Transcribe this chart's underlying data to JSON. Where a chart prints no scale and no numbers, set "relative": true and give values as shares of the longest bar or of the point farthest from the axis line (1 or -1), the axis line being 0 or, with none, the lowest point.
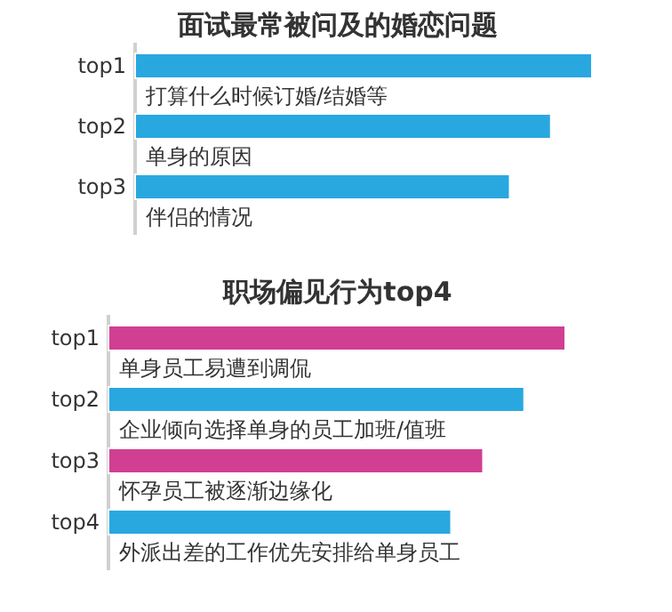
{
  "chart_data": [
    {
      "type": "bar",
      "orientation": "horizontal",
      "relative": true,
      "title": "面试最常被问及的婚恋问题",
      "categories": [
        "top1",
        "top2",
        "top3"
      ],
      "values": [
        1,
        0.91,
        0.82
      ],
      "color": "#29a8e0",
      "annotations": [
        "打算什么时候订婚/结婚等",
        "单身的原因",
        "伴侣的情况"
      ]
    },
    {
      "type": "bar",
      "orientation": "horizontal",
      "relative": true,
      "title": "职场偏见行为top4",
      "categories": [
        "top1",
        "top2",
        "top3",
        "top4"
      ],
      "values": [
        1,
        0.91,
        0.82,
        0.75
      ],
      "colors": [
        "#d03f92",
        "#29a8e0",
        "#d03f92",
        "#29a8e0"
      ],
      "annotations": [
        "单身员工易遭到调侃",
        "企业倾向选择单身的员工加班/值班",
        "怀孕员工被逐渐边缘化",
        "外派出差的工作优先安排给单身员工"
      ]
    }
  ]
}
